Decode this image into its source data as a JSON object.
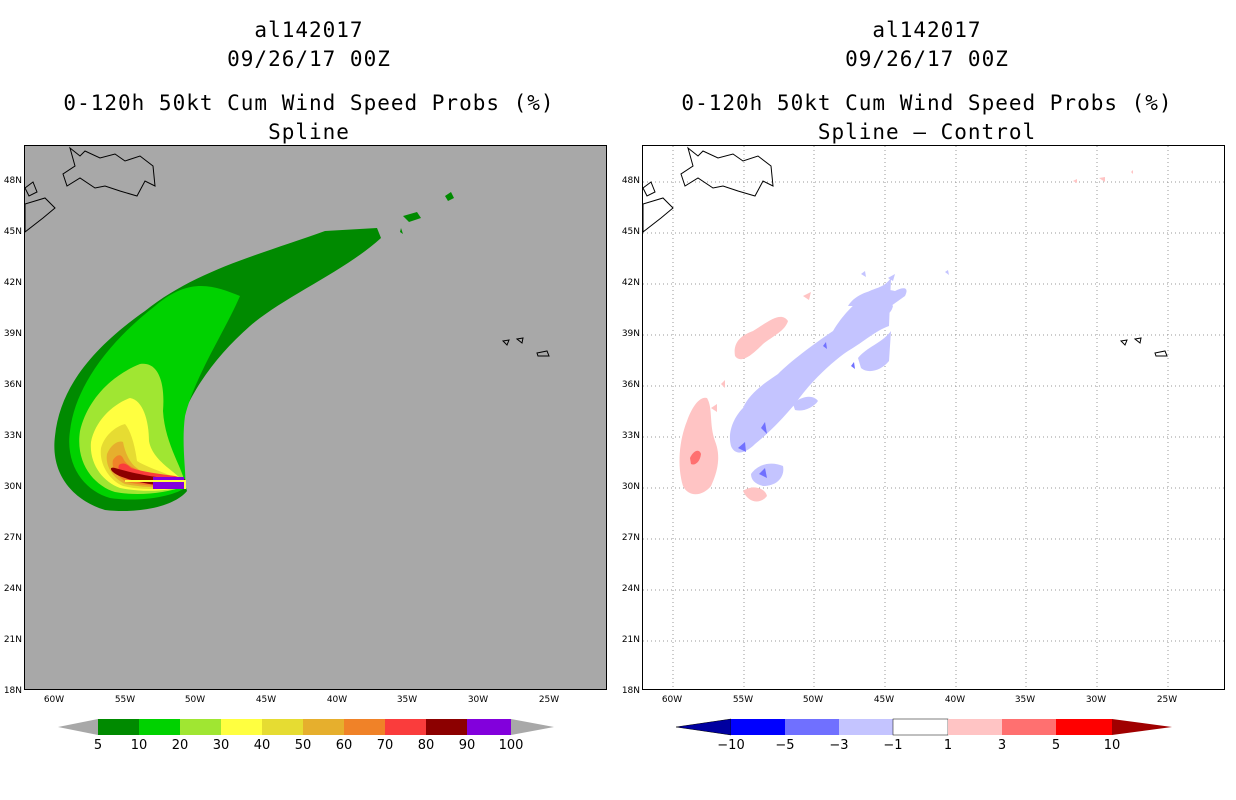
{
  "left_panel": {
    "storm_id": "al142017",
    "datetime": "09/26/17 00Z",
    "product": "0-120h 50kt Cum Wind Speed Probs (%)",
    "subtitle": "Spline",
    "background_color": "#a8a8a8",
    "colorbar": {
      "colors": [
        "#008a00",
        "#00d200",
        "#a0e632",
        "#ffff40",
        "#e6dc32",
        "#e6af2d",
        "#f08228",
        "#fa3c3c",
        "#8c0000",
        "#8200dc"
      ],
      "labels": [
        "5",
        "10",
        "20",
        "30",
        "40",
        "50",
        "60",
        "70",
        "80",
        "90",
        "100"
      ]
    }
  },
  "right_panel": {
    "storm_id": "al142017",
    "datetime": "09/26/17 00Z",
    "product": "0-120h 50kt Cum Wind Speed Probs (%)",
    "subtitle": "Spline – Control",
    "background_color": "#ffffff",
    "colorbar": {
      "colors": [
        "#0000a0",
        "#0000ff",
        "#7070ff",
        "#c4c4ff",
        "#ffffff",
        "#ffc4c4",
        "#ff7070",
        "#ff0000",
        "#a00000"
      ],
      "labels": [
        "−10",
        "−5",
        "−3",
        "−1",
        "1",
        "3",
        "5",
        "10"
      ]
    }
  },
  "axes": {
    "lat_labels": [
      "48N",
      "45N",
      "42N",
      "39N",
      "36N",
      "33N",
      "30N",
      "27N",
      "24N",
      "21N",
      "18N"
    ],
    "lon_labels": [
      "60W",
      "55W",
      "50W",
      "45W",
      "40W",
      "35W",
      "30W",
      "25W"
    ]
  }
}
